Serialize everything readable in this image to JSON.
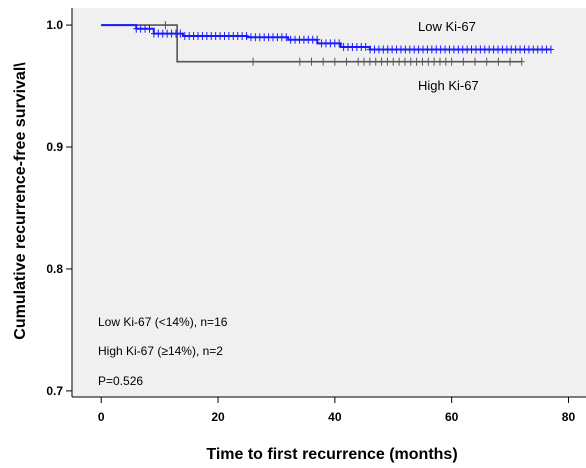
{
  "chart_data": {
    "type": "line",
    "title": "",
    "xlabel": "Time to first recurrence (months)",
    "ylabel": "Cumulative recurrence-free survival\\",
    "xlim": [
      -5,
      83
    ],
    "ylim": [
      0.695,
      1.014
    ],
    "xticks": [
      0,
      20,
      40,
      60,
      80
    ],
    "yticks": [
      0.7,
      0.8,
      0.9,
      1.0
    ],
    "xtick_labels": [
      "0",
      "20",
      "40",
      "60",
      "80"
    ],
    "ytick_labels": [
      "0.7",
      "0.8",
      "0.9",
      "1.0"
    ],
    "grid": false,
    "background": "#f0f0f0",
    "series": [
      {
        "name": "Low Ki-67",
        "color": "#1a1aff",
        "steps": [
          [
            0,
            1.0
          ],
          [
            6,
            0.997
          ],
          [
            9,
            0.993
          ],
          [
            14,
            0.991
          ],
          [
            25,
            0.99
          ],
          [
            32,
            0.988
          ],
          [
            37,
            0.985
          ],
          [
            41,
            0.982
          ],
          [
            46,
            0.98
          ],
          [
            77,
            0.98
          ]
        ],
        "censor_start": 6,
        "censor_end": 77,
        "censor_count": 95
      },
      {
        "name": "High Ki-67",
        "color": "#555555",
        "steps": [
          [
            0,
            1.0
          ],
          [
            13,
            0.97
          ],
          [
            72,
            0.97
          ]
        ],
        "censor_times": [
          11,
          26,
          34,
          36,
          38,
          40,
          42,
          44,
          45,
          46,
          47,
          48,
          49,
          50,
          51,
          52,
          53,
          54,
          55,
          56,
          57,
          58,
          59,
          60,
          62,
          64,
          66,
          68,
          70,
          72
        ]
      }
    ],
    "annotations": [
      "Low Ki-67 (<14%), n=16",
      "High Ki-67 (≥14%), n=2",
      "P=0.526"
    ]
  }
}
